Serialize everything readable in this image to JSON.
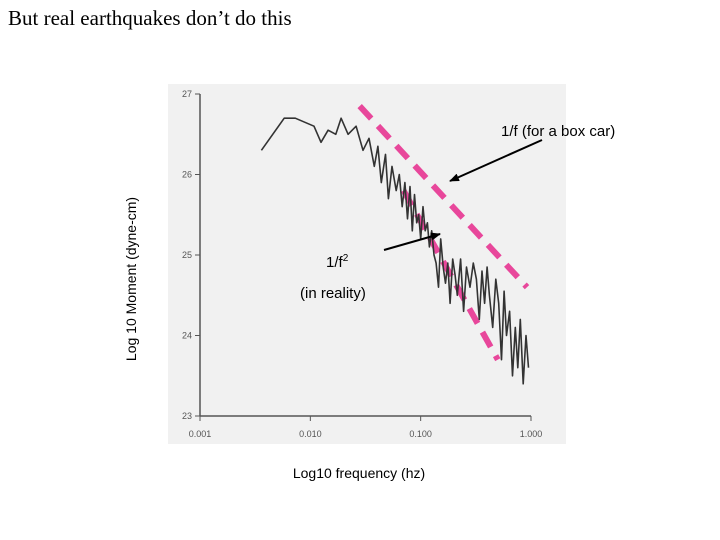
{
  "slide": {
    "title": "But real earthquakes don’t do this"
  },
  "chart_data": {
    "type": "line",
    "title": "",
    "xlabel": "Log10 frequency (hz)",
    "ylabel": "Log 10 Moment (dyne-cm)",
    "x_scale": "log",
    "xlim": [
      0.001,
      1.0
    ],
    "ylim": [
      23,
      27
    ],
    "x_ticks": [
      "0.001",
      "0.010",
      "0.100",
      "1.000"
    ],
    "y_ticks": [
      "23",
      "24",
      "25",
      "26",
      "27"
    ],
    "series": [
      {
        "color": "#333333",
        "x": [
          0.0036,
          0.0058,
          0.0073,
          0.0108,
          0.0125,
          0.0145,
          0.017,
          0.019,
          0.022,
          0.026,
          0.03,
          0.034,
          0.038,
          0.041,
          0.044,
          0.048,
          0.051,
          0.055,
          0.06,
          0.064,
          0.068,
          0.072,
          0.076,
          0.08,
          0.084,
          0.088,
          0.092,
          0.096,
          0.1,
          0.105,
          0.11,
          0.115,
          0.12,
          0.126,
          0.132,
          0.138,
          0.145,
          0.152,
          0.16,
          0.168,
          0.176,
          0.185,
          0.195,
          0.205,
          0.215,
          0.23,
          0.245,
          0.26,
          0.28,
          0.3,
          0.32,
          0.34,
          0.36,
          0.38,
          0.4,
          0.42,
          0.45,
          0.48,
          0.51,
          0.54,
          0.57,
          0.6,
          0.64,
          0.68,
          0.72,
          0.76,
          0.8,
          0.85,
          0.9,
          0.95
        ],
        "y": [
          26.3,
          26.7,
          26.7,
          26.6,
          26.4,
          26.55,
          26.5,
          26.7,
          26.5,
          26.6,
          26.3,
          26.45,
          26.1,
          26.35,
          25.9,
          26.25,
          25.7,
          26.1,
          25.8,
          26.0,
          25.6,
          25.9,
          25.45,
          25.85,
          25.3,
          25.75,
          25.4,
          25.5,
          25.2,
          25.6,
          25.3,
          25.4,
          25.1,
          25.3,
          25.0,
          24.9,
          24.6,
          25.2,
          24.85,
          24.65,
          24.9,
          24.4,
          24.95,
          24.75,
          24.5,
          24.95,
          24.3,
          24.85,
          24.6,
          24.9,
          24.7,
          24.2,
          24.8,
          24.4,
          24.85,
          24.5,
          24.1,
          24.7,
          24.4,
          23.7,
          24.55,
          24.0,
          24.3,
          23.5,
          24.1,
          23.6,
          24.2,
          23.4,
          24.0,
          23.6
        ]
      }
    ],
    "overlays": [
      {
        "name": "1/f (for a box car)",
        "color": "#e8479b",
        "x": [
          0.028,
          0.92
        ],
        "y": [
          26.85,
          24.6
        ]
      },
      {
        "name": "1/f² (in reality)",
        "color": "#e8479b",
        "x": [
          0.07,
          0.5
        ],
        "y": [
          25.8,
          23.7
        ]
      }
    ],
    "annotations": [
      {
        "text": "1/f (for a box car)"
      },
      {
        "text": "1/f",
        "superscript": "2"
      },
      {
        "text": "(in reality)"
      }
    ]
  }
}
